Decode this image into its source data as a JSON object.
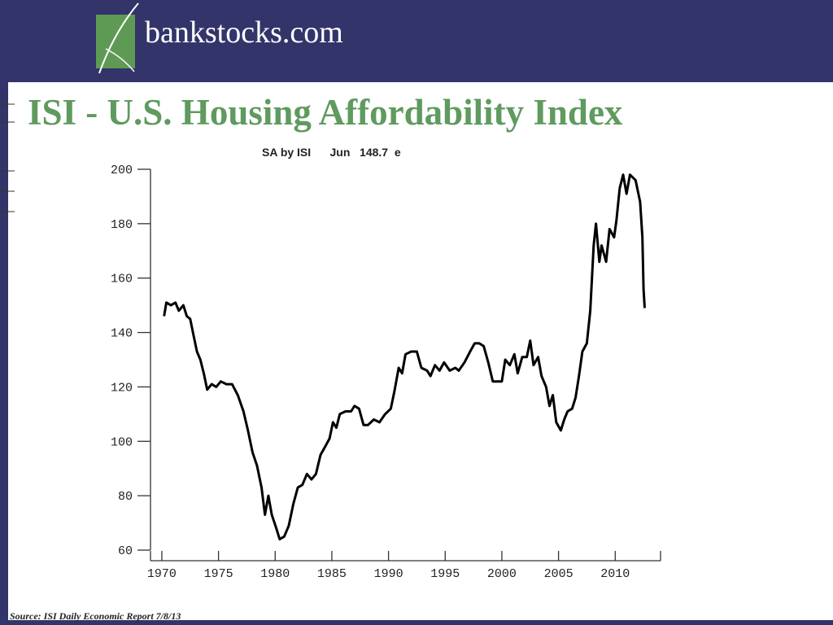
{
  "header": {
    "logo": "bankstocks.com"
  },
  "source": "Source: ISI Daily Economic Report 7/8/13",
  "chart_data": {
    "type": "line",
    "title": "ISI - U.S. Housing Affordability Index",
    "subtitle": "SA by ISI      Jun   148.7  e",
    "x": [
      1970.2,
      1970.4,
      1970.8,
      1971.2,
      1971.5,
      1971.9,
      1972.2,
      1972.5,
      1972.8,
      1973.1,
      1973.4,
      1973.7,
      1974.0,
      1974.4,
      1974.8,
      1975.2,
      1975.7,
      1976.2,
      1976.7,
      1977.2,
      1977.6,
      1978.0,
      1978.4,
      1978.8,
      1979.1,
      1979.4,
      1979.7,
      1980.1,
      1980.4,
      1980.8,
      1981.2,
      1981.6,
      1982.0,
      1982.4,
      1982.8,
      1983.2,
      1983.6,
      1984.0,
      1984.4,
      1984.8,
      1985.1,
      1985.4,
      1985.7,
      1986.2,
      1986.7,
      1987.0,
      1987.4,
      1987.8,
      1988.2,
      1988.7,
      1989.2,
      1989.7,
      1990.2,
      1990.5,
      1990.9,
      1991.2,
      1991.5,
      1992.0,
      1992.5,
      1992.9,
      1993.4,
      1993.7,
      1994.1,
      1994.5,
      1994.9,
      1995.4,
      1995.9,
      1996.2,
      1996.7,
      1997.2,
      1997.6,
      1998.0,
      1998.4,
      1998.8,
      1999.2,
      1999.6,
      2000.0,
      2000.3,
      2000.7,
      2001.1,
      2001.4,
      2001.8,
      2002.2,
      2002.5,
      2002.8,
      2003.2,
      2003.5,
      2003.9,
      2004.2,
      2004.5,
      2004.8,
      2005.2,
      2005.5,
      2005.8,
      2006.2,
      2006.5,
      2006.8,
      2007.1,
      2007.5,
      2007.8,
      2008.1,
      2008.3,
      2008.6,
      2008.8,
      2009.2,
      2009.5,
      2009.9,
      2010.1,
      2010.4,
      2010.7,
      2011.0,
      2011.3,
      2011.8,
      2012.2,
      2012.4,
      2012.5,
      2012.6
    ],
    "series": [
      {
        "color": "#000000",
        "values": [
          146,
          151,
          150,
          151,
          148,
          150,
          146,
          145,
          139,
          133,
          130,
          125,
          119,
          121,
          120,
          122,
          121,
          121,
          117,
          111,
          104,
          96,
          91,
          83,
          73,
          80,
          73,
          68,
          64,
          65,
          69,
          77,
          83,
          84,
          88,
          86,
          88,
          95,
          98,
          101,
          107,
          105,
          110,
          111,
          111,
          113,
          112,
          106,
          106,
          108,
          107,
          110,
          112,
          118,
          127,
          125,
          132,
          133,
          133,
          127,
          126,
          124,
          128,
          126,
          129,
          126,
          127,
          126,
          129,
          133,
          136,
          136,
          135,
          129,
          122,
          122,
          122,
          130,
          128,
          132,
          125,
          131,
          131,
          137,
          128,
          131,
          124,
          120,
          113,
          117,
          107,
          104,
          108,
          111,
          112,
          116,
          124,
          133,
          136,
          148,
          172,
          180,
          166,
          172,
          166,
          178,
          175,
          181,
          193,
          198,
          191,
          198,
          196,
          188,
          175,
          156,
          149
        ]
      }
    ],
    "xlim": [
      1969,
      2014
    ],
    "ylim": [
      60,
      200
    ],
    "xticks": [
      1970,
      1975,
      1980,
      1985,
      1990,
      1995,
      2000,
      2005,
      2010
    ],
    "yticks": [
      60,
      80,
      100,
      120,
      140,
      160,
      180,
      200
    ]
  }
}
